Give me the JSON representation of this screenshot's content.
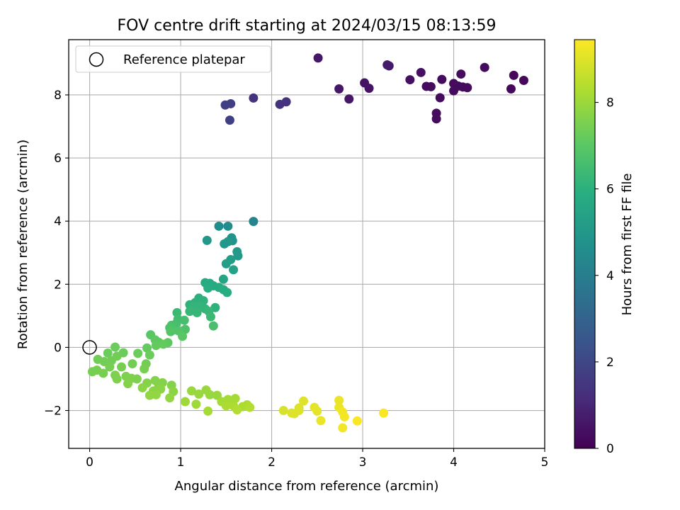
{
  "chart_data": {
    "type": "scatter",
    "title": "FOV centre drift starting at 2024/03/15 08:13:59",
    "xlabel": "Angular distance from reference (arcmin)",
    "ylabel": "Rotation from reference (arcmin)",
    "xlim": [
      -0.23,
      5.0
    ],
    "ylim": [
      -3.2,
      9.75
    ],
    "xticks": [
      0,
      1,
      2,
      3,
      4,
      5
    ],
    "yticks": [
      -2,
      0,
      2,
      4,
      6,
      8
    ],
    "grid": true,
    "legend": {
      "position": "top-left",
      "entries": [
        "Reference platepar"
      ]
    },
    "reference_point": {
      "x": 0,
      "y": 0,
      "marker": "open-circle"
    },
    "colorbar": {
      "label": "Hours from first FF file",
      "colormap": "viridis",
      "range": [
        0,
        9.45
      ],
      "ticks": [
        0,
        2,
        4,
        6,
        8
      ]
    },
    "points": [
      {
        "x": 2.51,
        "y": 9.17,
        "h": 0.6
      },
      {
        "x": 3.27,
        "y": 8.95,
        "h": 0.7
      },
      {
        "x": 3.29,
        "y": 8.92,
        "h": 0.7
      },
      {
        "x": 4.34,
        "y": 8.87,
        "h": 0.3
      },
      {
        "x": 3.64,
        "y": 8.71,
        "h": 0.4
      },
      {
        "x": 4.08,
        "y": 8.66,
        "h": 0.3
      },
      {
        "x": 4.66,
        "y": 8.62,
        "h": 0.2
      },
      {
        "x": 3.52,
        "y": 8.48,
        "h": 0.4
      },
      {
        "x": 3.87,
        "y": 8.49,
        "h": 0.3
      },
      {
        "x": 4.77,
        "y": 8.46,
        "h": 0.2
      },
      {
        "x": 3.02,
        "y": 8.38,
        "h": 0.5
      },
      {
        "x": 4.0,
        "y": 8.36,
        "h": 0.3
      },
      {
        "x": 4.05,
        "y": 8.28,
        "h": 0.3
      },
      {
        "x": 3.7,
        "y": 8.27,
        "h": 0.3
      },
      {
        "x": 3.75,
        "y": 8.26,
        "h": 0.3
      },
      {
        "x": 4.1,
        "y": 8.25,
        "h": 0.3
      },
      {
        "x": 4.15,
        "y": 8.23,
        "h": 0.3
      },
      {
        "x": 3.07,
        "y": 8.21,
        "h": 0.5
      },
      {
        "x": 2.74,
        "y": 8.19,
        "h": 0.6
      },
      {
        "x": 4.63,
        "y": 8.19,
        "h": 0.2
      },
      {
        "x": 4.0,
        "y": 8.13,
        "h": 0.3
      },
      {
        "x": 3.85,
        "y": 7.91,
        "h": 0.3
      },
      {
        "x": 2.85,
        "y": 7.87,
        "h": 0.6
      },
      {
        "x": 3.81,
        "y": 7.42,
        "h": 0.3
      },
      {
        "x": 3.81,
        "y": 7.24,
        "h": 0.3
      },
      {
        "x": 1.8,
        "y": 7.9,
        "h": 1.4
      },
      {
        "x": 2.16,
        "y": 7.78,
        "h": 1.4
      },
      {
        "x": 2.09,
        "y": 7.7,
        "h": 1.4
      },
      {
        "x": 1.55,
        "y": 7.72,
        "h": 1.8
      },
      {
        "x": 1.49,
        "y": 7.68,
        "h": 1.8
      },
      {
        "x": 1.54,
        "y": 7.2,
        "h": 1.8
      },
      {
        "x": 1.8,
        "y": 3.99,
        "h": 4.3
      },
      {
        "x": 1.42,
        "y": 3.84,
        "h": 4.6
      },
      {
        "x": 1.52,
        "y": 3.84,
        "h": 4.6
      },
      {
        "x": 1.56,
        "y": 3.47,
        "h": 4.8
      },
      {
        "x": 1.29,
        "y": 3.39,
        "h": 5.0
      },
      {
        "x": 1.57,
        "y": 3.38,
        "h": 4.9
      },
      {
        "x": 1.48,
        "y": 3.28,
        "h": 5.0
      },
      {
        "x": 1.52,
        "y": 3.35,
        "h": 5.0
      },
      {
        "x": 1.62,
        "y": 3.03,
        "h": 5.1
      },
      {
        "x": 1.63,
        "y": 2.9,
        "h": 5.1
      },
      {
        "x": 1.55,
        "y": 2.78,
        "h": 5.2
      },
      {
        "x": 1.5,
        "y": 2.65,
        "h": 5.3
      },
      {
        "x": 1.58,
        "y": 2.46,
        "h": 5.4
      },
      {
        "x": 1.47,
        "y": 2.16,
        "h": 5.6
      },
      {
        "x": 1.27,
        "y": 2.05,
        "h": 5.8
      },
      {
        "x": 1.32,
        "y": 2.03,
        "h": 5.8
      },
      {
        "x": 1.36,
        "y": 1.95,
        "h": 5.8
      },
      {
        "x": 1.42,
        "y": 1.9,
        "h": 5.8
      },
      {
        "x": 1.3,
        "y": 1.88,
        "h": 5.9
      },
      {
        "x": 1.47,
        "y": 1.83,
        "h": 5.9
      },
      {
        "x": 1.51,
        "y": 1.74,
        "h": 5.9
      },
      {
        "x": 1.2,
        "y": 1.56,
        "h": 6.0
      },
      {
        "x": 1.16,
        "y": 1.42,
        "h": 6.1
      },
      {
        "x": 1.25,
        "y": 1.48,
        "h": 6.1
      },
      {
        "x": 1.1,
        "y": 1.35,
        "h": 6.1
      },
      {
        "x": 1.14,
        "y": 1.3,
        "h": 6.2
      },
      {
        "x": 1.21,
        "y": 1.3,
        "h": 6.2
      },
      {
        "x": 1.38,
        "y": 1.26,
        "h": 6.1
      },
      {
        "x": 1.27,
        "y": 1.22,
        "h": 6.2
      },
      {
        "x": 1.1,
        "y": 1.14,
        "h": 6.3
      },
      {
        "x": 1.31,
        "y": 1.14,
        "h": 6.3
      },
      {
        "x": 1.18,
        "y": 1.1,
        "h": 6.3
      },
      {
        "x": 0.96,
        "y": 1.1,
        "h": 6.4
      },
      {
        "x": 1.33,
        "y": 0.97,
        "h": 6.4
      },
      {
        "x": 0.97,
        "y": 0.89,
        "h": 6.5
      },
      {
        "x": 1.04,
        "y": 0.86,
        "h": 6.6
      },
      {
        "x": 0.95,
        "y": 0.75,
        "h": 6.6
      },
      {
        "x": 0.9,
        "y": 0.7,
        "h": 6.7
      },
      {
        "x": 1.36,
        "y": 0.68,
        "h": 6.7
      },
      {
        "x": 0.88,
        "y": 0.62,
        "h": 6.8
      },
      {
        "x": 1.05,
        "y": 0.57,
        "h": 6.8
      },
      {
        "x": 0.92,
        "y": 0.55,
        "h": 6.8
      },
      {
        "x": 0.98,
        "y": 0.52,
        "h": 6.9
      },
      {
        "x": 0.89,
        "y": 0.5,
        "h": 6.9
      },
      {
        "x": 0.67,
        "y": 0.4,
        "h": 7.0
      },
      {
        "x": 1.02,
        "y": 0.35,
        "h": 7.0
      },
      {
        "x": 0.72,
        "y": 0.24,
        "h": 7.1
      },
      {
        "x": 0.76,
        "y": 0.16,
        "h": 7.1
      },
      {
        "x": 0.86,
        "y": 0.15,
        "h": 7.1
      },
      {
        "x": 0.81,
        "y": 0.1,
        "h": 7.2
      },
      {
        "x": 0.73,
        "y": 0.06,
        "h": 7.2
      },
      {
        "x": 0.63,
        "y": -0.02,
        "h": 7.2
      },
      {
        "x": 0.53,
        "y": -0.19,
        "h": 7.3
      },
      {
        "x": 0.66,
        "y": -0.24,
        "h": 7.3
      },
      {
        "x": 0.28,
        "y": 0.01,
        "h": 7.3
      },
      {
        "x": 0.37,
        "y": -0.17,
        "h": 7.3
      },
      {
        "x": 0.2,
        "y": -0.18,
        "h": 7.3
      },
      {
        "x": 0.3,
        "y": -0.28,
        "h": 7.4
      },
      {
        "x": 0.09,
        "y": -0.38,
        "h": 7.4
      },
      {
        "x": 0.16,
        "y": -0.45,
        "h": 7.4
      },
      {
        "x": 0.24,
        "y": -0.42,
        "h": 7.4
      },
      {
        "x": 0.47,
        "y": -0.52,
        "h": 7.4
      },
      {
        "x": 0.62,
        "y": -0.52,
        "h": 7.4
      },
      {
        "x": 0.35,
        "y": -0.62,
        "h": 7.5
      },
      {
        "x": 0.22,
        "y": -0.62,
        "h": 7.5
      },
      {
        "x": 0.6,
        "y": -0.68,
        "h": 7.5
      },
      {
        "x": 0.03,
        "y": -0.77,
        "h": 7.5
      },
      {
        "x": 0.08,
        "y": -0.72,
        "h": 7.5
      },
      {
        "x": 0.15,
        "y": -0.82,
        "h": 7.5
      },
      {
        "x": 0.28,
        "y": -0.88,
        "h": 7.6
      },
      {
        "x": 0.4,
        "y": -0.92,
        "h": 7.6
      },
      {
        "x": 0.3,
        "y": -1.0,
        "h": 7.6
      },
      {
        "x": 0.46,
        "y": -0.98,
        "h": 7.6
      },
      {
        "x": 0.52,
        "y": -1.0,
        "h": 7.6
      },
      {
        "x": 0.42,
        "y": -1.15,
        "h": 7.7
      },
      {
        "x": 0.72,
        "y": -1.05,
        "h": 7.7
      },
      {
        "x": 0.63,
        "y": -1.13,
        "h": 7.7
      },
      {
        "x": 0.8,
        "y": -1.12,
        "h": 7.7
      },
      {
        "x": 0.76,
        "y": -1.2,
        "h": 7.7
      },
      {
        "x": 0.9,
        "y": -1.2,
        "h": 7.7
      },
      {
        "x": 0.58,
        "y": -1.28,
        "h": 7.8
      },
      {
        "x": 0.78,
        "y": -1.32,
        "h": 7.8
      },
      {
        "x": 0.7,
        "y": -1.38,
        "h": 7.8
      },
      {
        "x": 0.92,
        "y": -1.4,
        "h": 7.8
      },
      {
        "x": 0.66,
        "y": -1.52,
        "h": 7.9
      },
      {
        "x": 0.73,
        "y": -1.5,
        "h": 7.9
      },
      {
        "x": 0.88,
        "y": -1.6,
        "h": 7.9
      },
      {
        "x": 1.12,
        "y": -1.38,
        "h": 8.0
      },
      {
        "x": 1.28,
        "y": -1.35,
        "h": 8.0
      },
      {
        "x": 1.2,
        "y": -1.48,
        "h": 8.0
      },
      {
        "x": 1.32,
        "y": -1.5,
        "h": 8.0
      },
      {
        "x": 1.4,
        "y": -1.52,
        "h": 8.0
      },
      {
        "x": 1.05,
        "y": -1.72,
        "h": 8.1
      },
      {
        "x": 1.17,
        "y": -1.8,
        "h": 8.1
      },
      {
        "x": 1.3,
        "y": -2.02,
        "h": 8.2
      },
      {
        "x": 1.45,
        "y": -1.72,
        "h": 8.2
      },
      {
        "x": 1.52,
        "y": -1.65,
        "h": 8.2
      },
      {
        "x": 1.6,
        "y": -1.62,
        "h": 8.2
      },
      {
        "x": 1.5,
        "y": -1.85,
        "h": 8.3
      },
      {
        "x": 1.58,
        "y": -1.85,
        "h": 8.3
      },
      {
        "x": 1.68,
        "y": -1.88,
        "h": 8.3
      },
      {
        "x": 1.73,
        "y": -1.82,
        "h": 8.3
      },
      {
        "x": 1.76,
        "y": -1.9,
        "h": 8.4
      },
      {
        "x": 1.62,
        "y": -1.98,
        "h": 8.4
      },
      {
        "x": 2.13,
        "y": -2.0,
        "h": 8.9
      },
      {
        "x": 2.22,
        "y": -2.08,
        "h": 9.0
      },
      {
        "x": 2.25,
        "y": -2.1,
        "h": 9.0
      },
      {
        "x": 2.3,
        "y": -2.0,
        "h": 9.0
      },
      {
        "x": 2.3,
        "y": -1.92,
        "h": 9.0
      },
      {
        "x": 2.35,
        "y": -1.7,
        "h": 9.0
      },
      {
        "x": 2.47,
        "y": -1.9,
        "h": 9.1
      },
      {
        "x": 2.5,
        "y": -2.02,
        "h": 9.1
      },
      {
        "x": 2.54,
        "y": -2.32,
        "h": 9.2
      },
      {
        "x": 2.74,
        "y": -1.68,
        "h": 9.2
      },
      {
        "x": 2.74,
        "y": -1.9,
        "h": 9.2
      },
      {
        "x": 2.78,
        "y": -2.05,
        "h": 9.3
      },
      {
        "x": 2.8,
        "y": -2.2,
        "h": 9.3
      },
      {
        "x": 2.78,
        "y": -2.55,
        "h": 9.3
      },
      {
        "x": 2.94,
        "y": -2.33,
        "h": 9.4
      },
      {
        "x": 3.23,
        "y": -2.08,
        "h": 9.4
      }
    ]
  }
}
